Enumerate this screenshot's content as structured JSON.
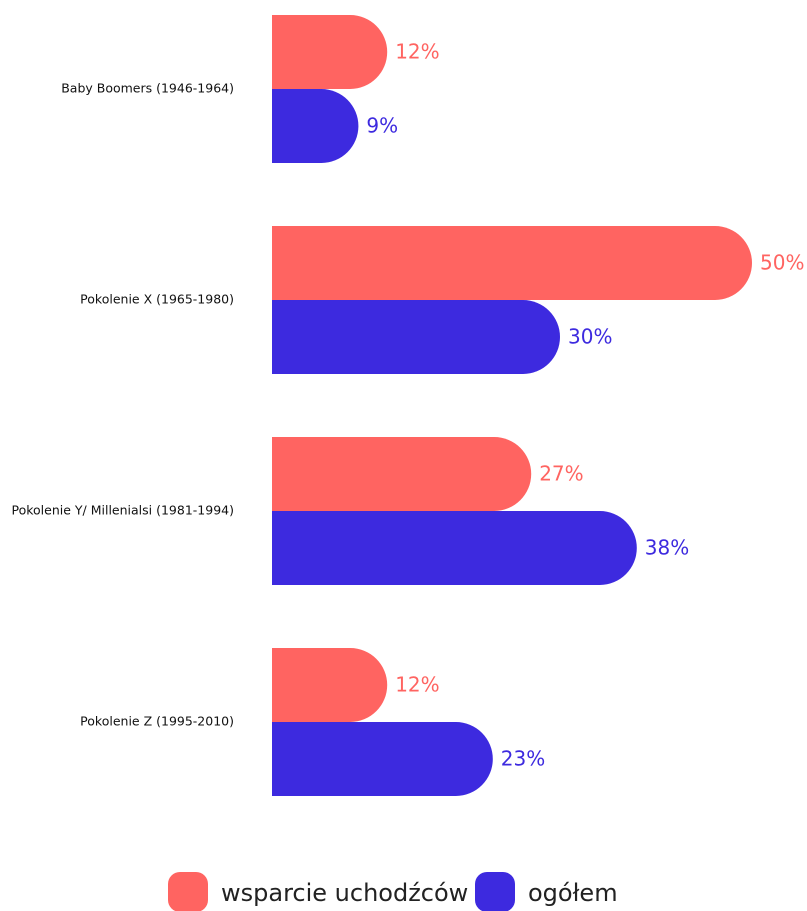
{
  "chart_data": {
    "type": "hbar",
    "categories": [
      "Baby Boomers (1946-1964)",
      "Pokolenie X (1965-1980)",
      "Pokolenie Y/ Millenialsi (1981-1994)",
      "Pokolenie Z (1995-2010)"
    ],
    "series": [
      {
        "name": "wsparcie uchodźców",
        "color": "#ff6461",
        "values": [
          12,
          50,
          27,
          12
        ],
        "value_labels": [
          "12%",
          "50%",
          "27%",
          "12%"
        ]
      },
      {
        "name": "ogółem",
        "color": "#3d2adf",
        "values": [
          9,
          30,
          38,
          23
        ],
        "value_labels": [
          "9%",
          "30%",
          "38%",
          "23%"
        ]
      }
    ],
    "xlim": [
      0,
      50
    ],
    "legend": "bottom"
  }
}
